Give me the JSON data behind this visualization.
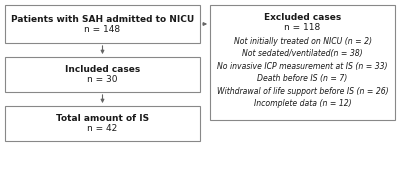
{
  "box1_text": "Patients with SAH admitted to NICU",
  "box1_n": "n = 148",
  "box2_text": "Included cases",
  "box2_n": "n = 30",
  "box3_text": "Total amount of IS",
  "box3_n": "n = 42",
  "box4_text": "Excluded cases",
  "box4_n": "n = 118",
  "box4_details": [
    "Not initially treated on NICU (n = 2)",
    "Not sedated/ventilated(n = 38)",
    "No invasive ICP measurement at IS (n = 33)",
    "Death before IS (n = 7)",
    "Withdrawal of life support before IS (n = 26)",
    "Incomplete data (n = 12)"
  ],
  "bg_color": "#ffffff",
  "box_facecolor": "#ffffff",
  "box_edgecolor": "#888888",
  "text_color": "#1a1a1a",
  "arrow_color": "#666666",
  "fontsize_main": 6.5,
  "fontsize_n": 6.5,
  "fontsize_detail": 5.6
}
